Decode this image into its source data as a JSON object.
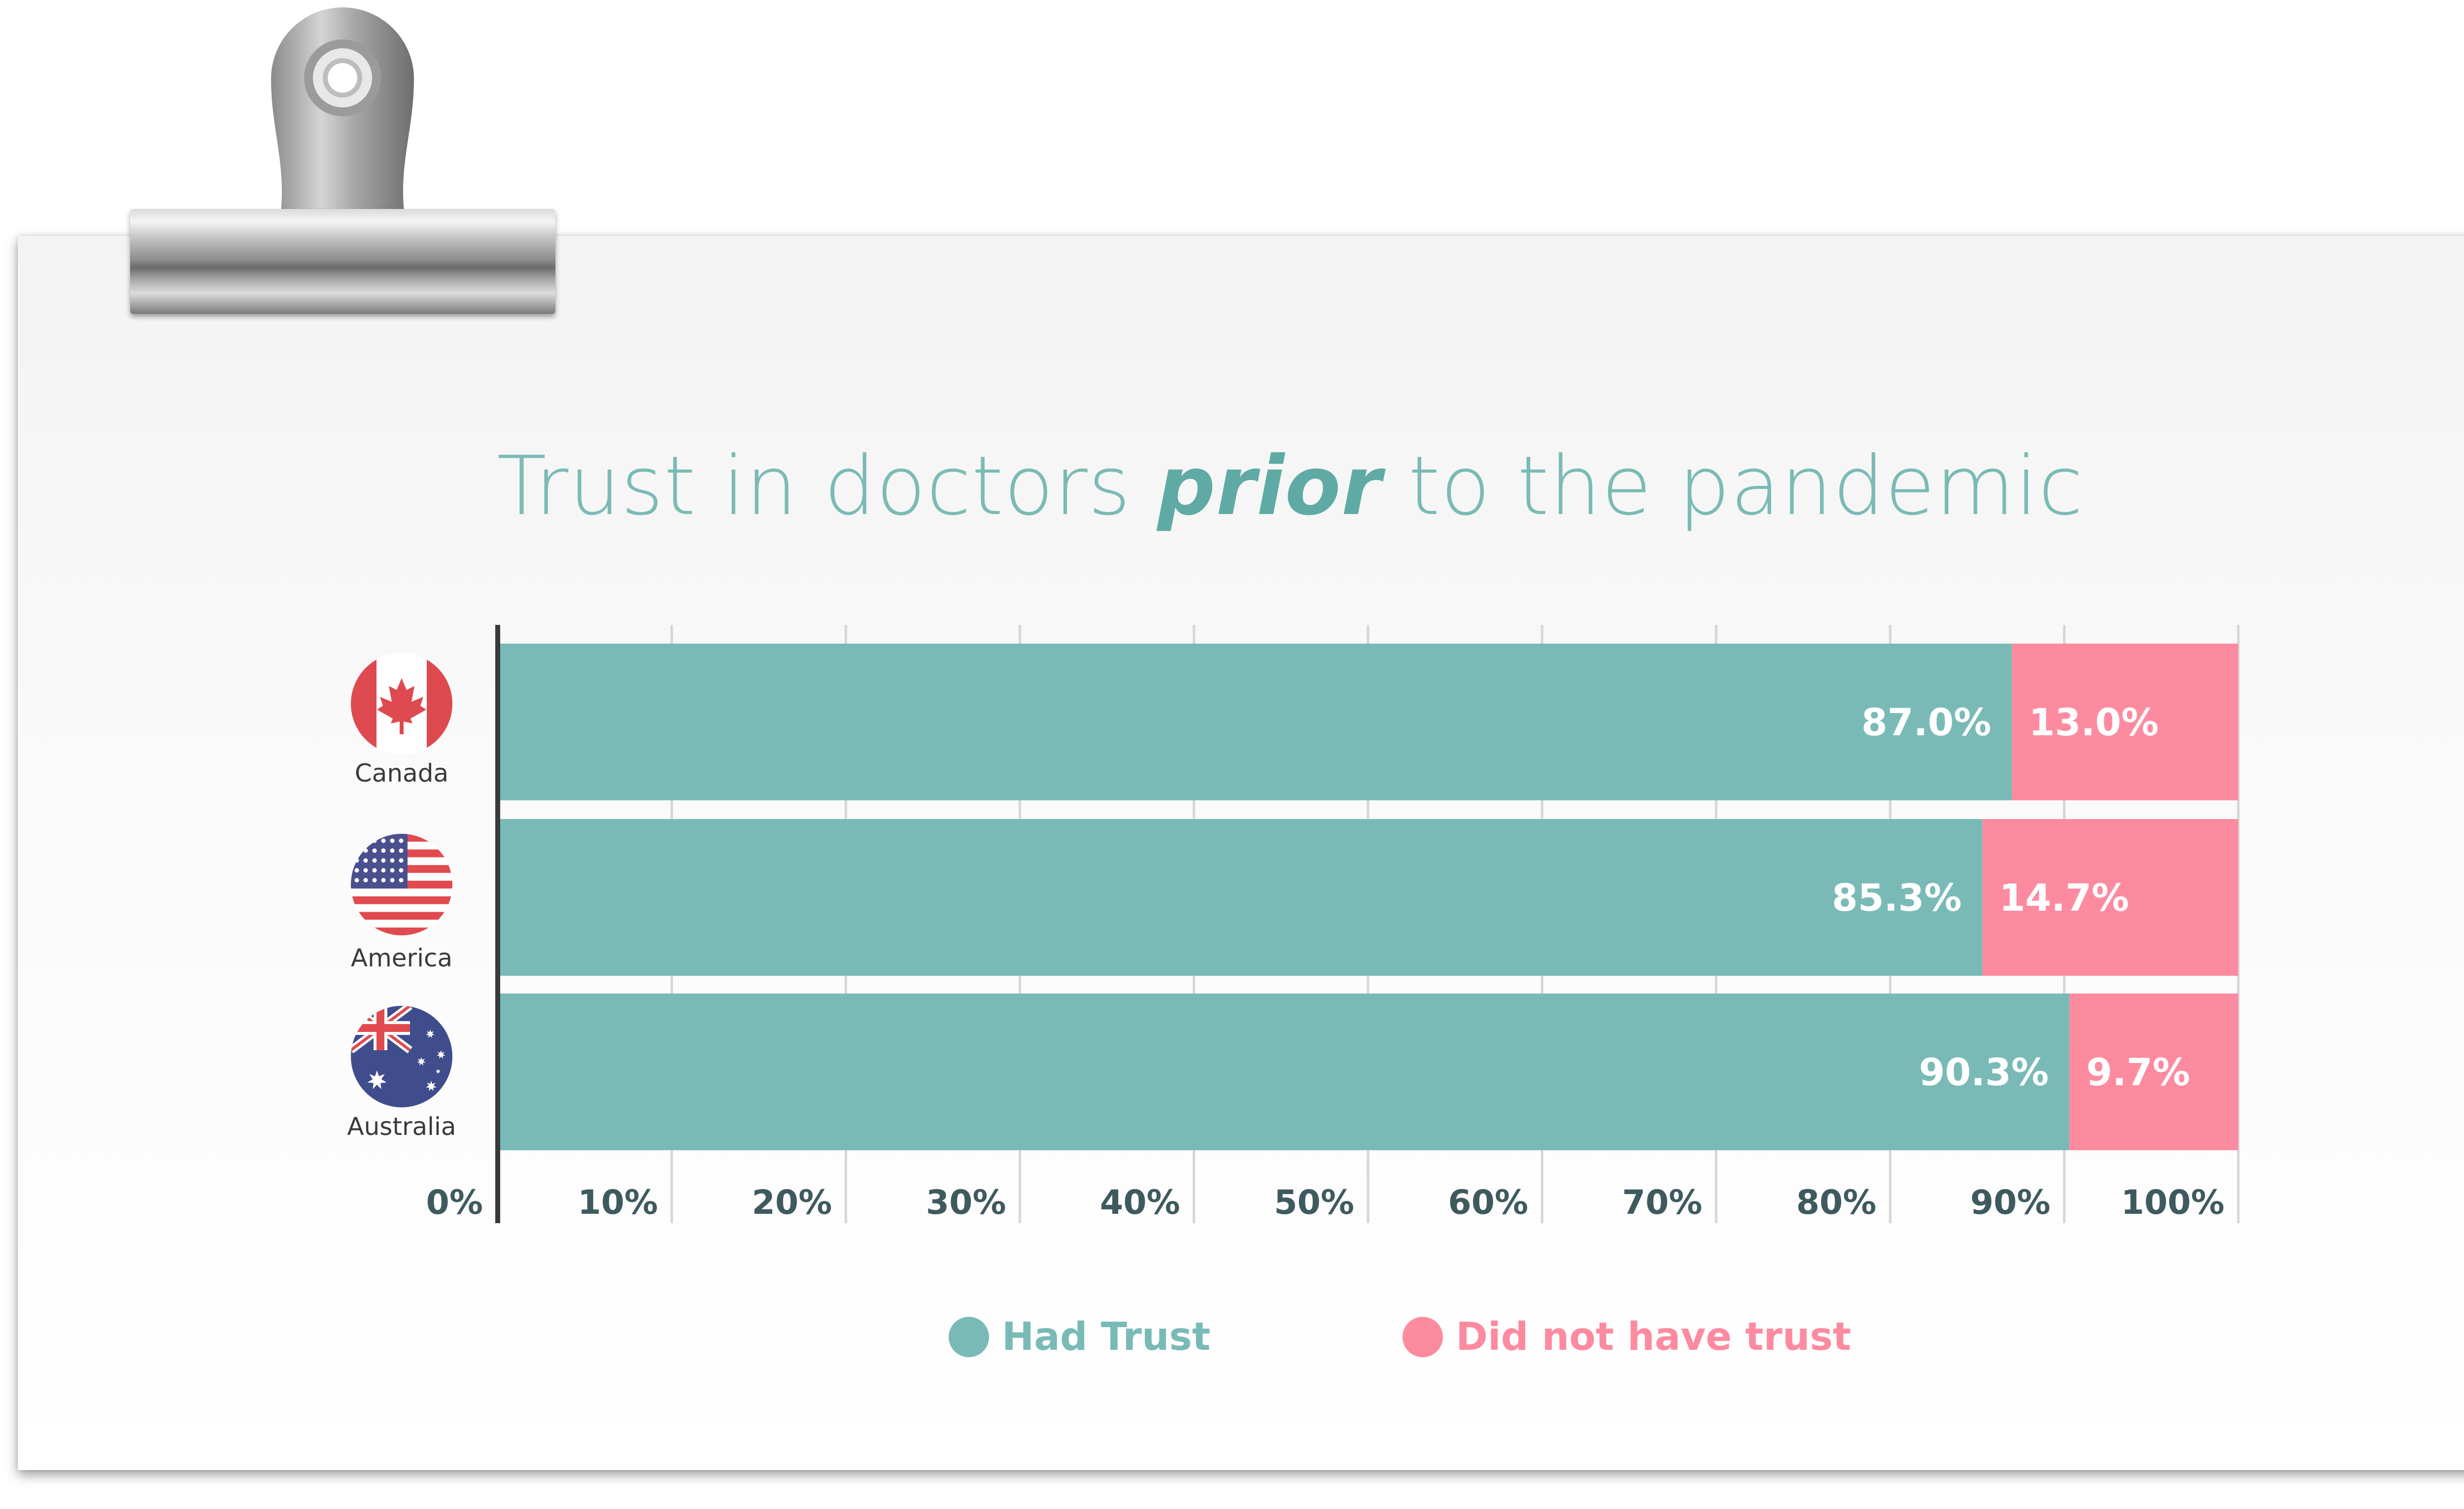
{
  "title": {
    "before": "Trust in doctors ",
    "emphasis": "prior",
    "after": " to the pandemic"
  },
  "chart_data": {
    "type": "bar",
    "orientation": "horizontal",
    "stacked": true,
    "categories": [
      "Canada",
      "America",
      "Australia"
    ],
    "series": [
      {
        "name": "Had Trust",
        "values": [
          87.0,
          85.3,
          90.3
        ],
        "labels": [
          "87.0%",
          "85.3%",
          "90.3%"
        ],
        "color": "#79bab7"
      },
      {
        "name": "Did not have trust",
        "values": [
          13.0,
          14.7,
          9.7
        ],
        "labels": [
          "13.0%",
          "14.7%",
          "9.7%"
        ],
        "color": "#fd8ba0"
      }
    ],
    "xlim": [
      0,
      100
    ],
    "xticks": [
      "0%",
      "10%",
      "20%",
      "30%",
      "40%",
      "50%",
      "60%",
      "70%",
      "80%",
      "90%",
      "100%"
    ],
    "grid": true,
    "legend_position": "bottom"
  },
  "flags": [
    "canada-flag-icon",
    "usa-flag-icon",
    "australia-flag-icon"
  ],
  "colors": {
    "title": "#7bbab5",
    "axis_text": "#3f5a5f",
    "grid": "#d6d6d6"
  }
}
